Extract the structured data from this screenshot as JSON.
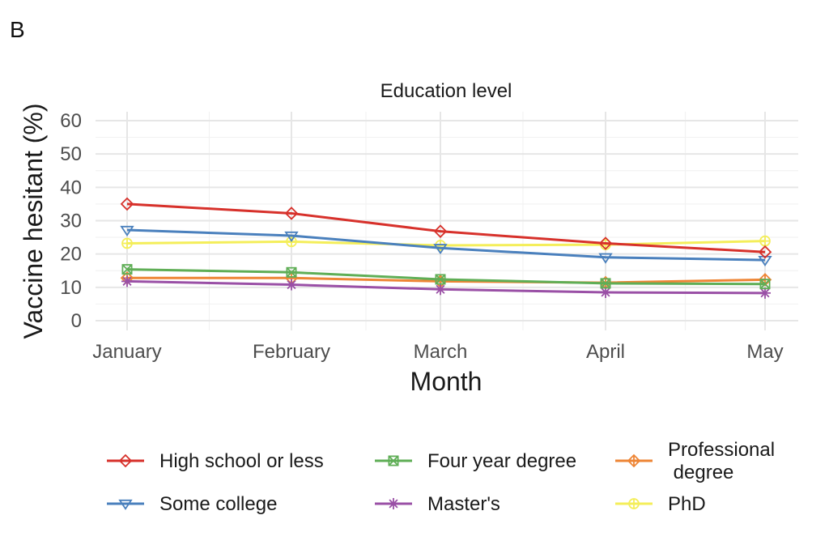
{
  "panel_label": "B",
  "chart_data": {
    "type": "line",
    "title": "Education level",
    "xlabel": "Month",
    "ylabel": "Vaccine hesitant (%)",
    "x": [
      "January",
      "February",
      "March",
      "April",
      "May"
    ],
    "ylim": [
      0,
      60
    ],
    "yticks": [
      0,
      10,
      20,
      30,
      40,
      50,
      60
    ],
    "grid": true,
    "legend_position": "bottom",
    "series": [
      {
        "name": "High school or less",
        "color": "#d7312b",
        "marker": "diamond",
        "values": [
          35,
          32.2,
          26.8,
          23.2,
          20.6
        ]
      },
      {
        "name": "Some college",
        "color": "#4a80bd",
        "marker": "triangle-down",
        "values": [
          27.2,
          25.5,
          21.8,
          19.0,
          18.2
        ]
      },
      {
        "name": "Four year degree",
        "color": "#5fae56",
        "marker": "square-x",
        "values": [
          15.4,
          14.5,
          12.4,
          11.2,
          11.0
        ]
      },
      {
        "name": "Master's",
        "color": "#9a50a6",
        "marker": "asterisk",
        "values": [
          11.8,
          10.8,
          9.4,
          8.5,
          8.3
        ]
      },
      {
        "name": "Professional\n degree",
        "color": "#ee8535",
        "marker": "diamond-plus",
        "values": [
          12.8,
          12.8,
          11.8,
          11.4,
          12.3
        ]
      },
      {
        "name": "PhD",
        "color": "#f4ee5a",
        "marker": "circle-plus",
        "values": [
          23.2,
          23.7,
          22.6,
          22.8,
          23.9
        ]
      }
    ]
  }
}
